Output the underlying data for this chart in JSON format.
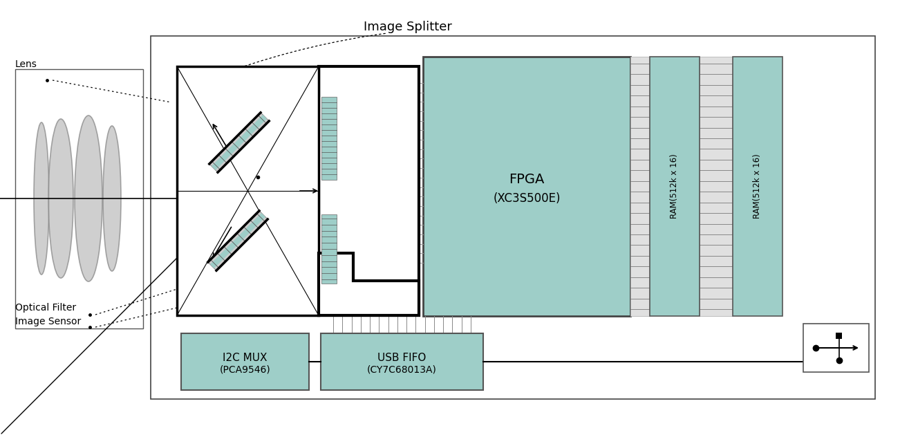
{
  "bg_color": "#ffffff",
  "teal_color": "#9ecec8",
  "gray_color": "#cccccc",
  "gray_dark": "#999999",
  "black": "#000000",
  "white": "#ffffff",
  "title": "Image Splitter",
  "lens_label": "Lens",
  "optical_filter_label": "Optical Filter",
  "image_sensor_label": "Image Sensor",
  "fpga_label1": "FPGA",
  "fpga_label2": "(XC3S500E)",
  "ram_label": "RAM(512k x 16)",
  "i2c_label1": "I2C MUX",
  "i2c_label2": "(PCA9546)",
  "usb_label1": "USB FIFO",
  "usb_label2": "(CY7C68013A)",
  "fig_w": 13.15,
  "fig_h": 6.29,
  "dpi": 100
}
